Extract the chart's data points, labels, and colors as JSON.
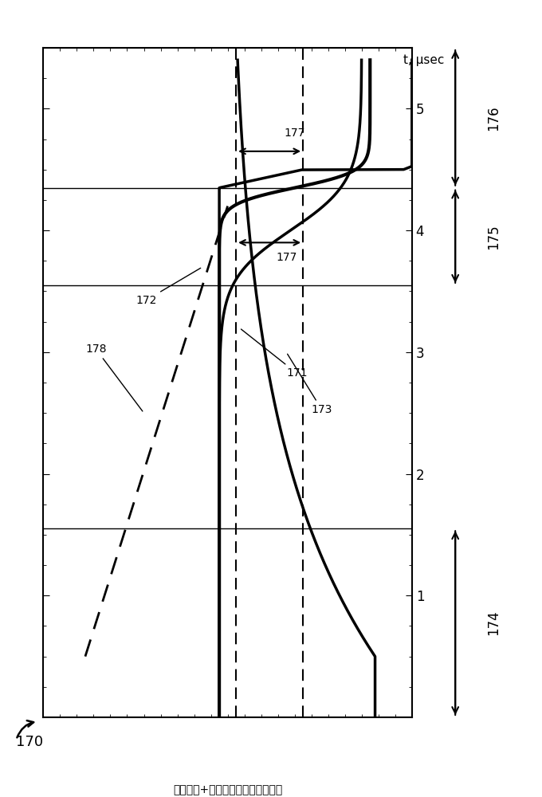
{
  "ylabel": "t, μsec",
  "ylim": [
    0,
    5.5
  ],
  "xlim": [
    -1.1,
    1.1
  ],
  "yticks": [
    1,
    2,
    3,
    4,
    5
  ],
  "xticks": [],
  "hline1_y": 4.35,
  "hline2_y": 3.55,
  "hline3_y": 1.55,
  "vline1_x": 0.05,
  "vline2_x": 0.45,
  "color_curves": "#000000",
  "background": "#ffffff",
  "fig_width": 6.8,
  "fig_height": 10.0,
  "dpi": 100,
  "label_170": "170",
  "label_171": "171",
  "label_172": "172",
  "label_173": "173",
  "label_174": "174",
  "label_175": "175",
  "label_176": "176",
  "label_177a": "177",
  "label_177b": "177",
  "label_178": "178",
  "caption": "光发强度+光发强度电压电流影响激"
}
